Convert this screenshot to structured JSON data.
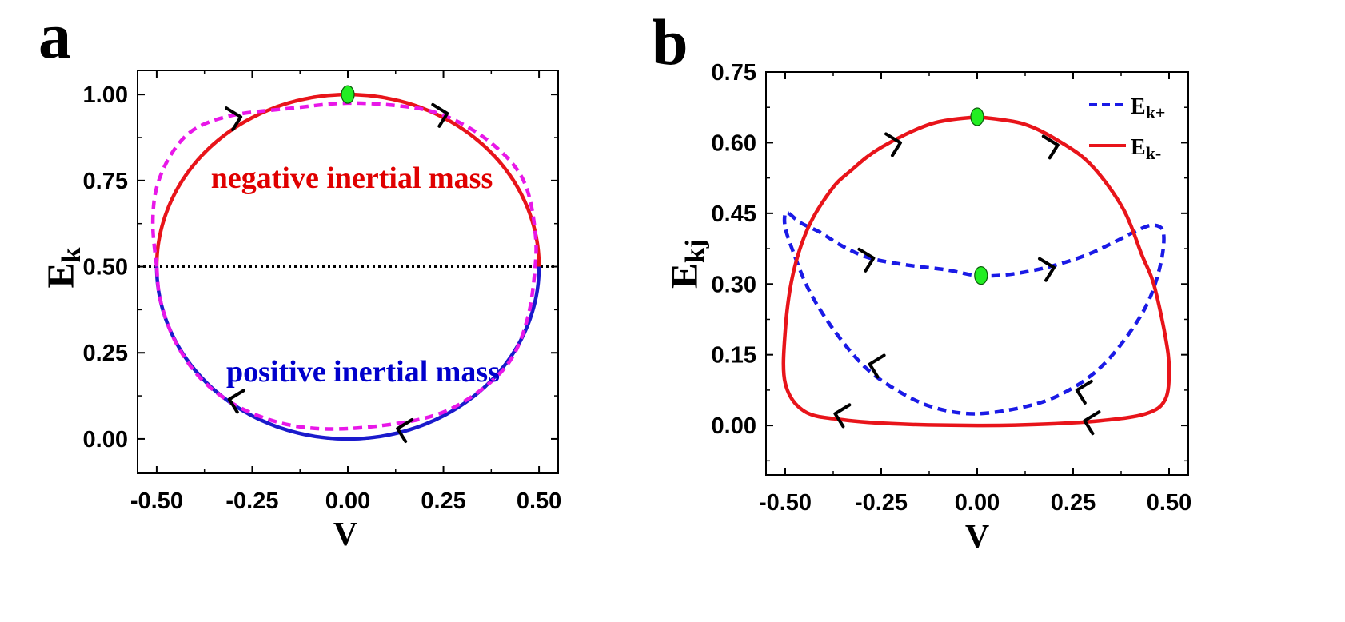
{
  "chart_data": [
    {
      "panel": "a",
      "type": "line",
      "xlabel": "V",
      "ylabel": "E",
      "ylabel_sub": "k",
      "xlim": [
        -0.55,
        0.55
      ],
      "ylim": [
        -0.1,
        1.07
      ],
      "x_ticks": [
        -0.5,
        -0.25,
        0.0,
        0.25,
        0.5
      ],
      "x_tick_labels": [
        "-0.50",
        "-0.25",
        "0.00",
        "0.25",
        "0.50"
      ],
      "y_ticks": [
        0.0,
        0.25,
        0.5,
        0.75,
        1.0
      ],
      "y_tick_labels": [
        "0.00",
        "0.25",
        "0.50",
        "0.75",
        "1.00"
      ],
      "reference_line": {
        "y": 0.5,
        "style": "dotted",
        "color": "#000000"
      },
      "annotations": [
        {
          "text": "negative inertial mass",
          "color": "#e00000",
          "x": -0.1,
          "y": 0.77
        },
        {
          "text": "positive inertial mass",
          "color": "#0000cc",
          "x": 0.06,
          "y": 0.22
        }
      ],
      "series": [
        {
          "name": "upper arc",
          "style": "solid",
          "color": "#e8141a",
          "shape": "semicircle",
          "center": [
            0.0,
            0.5
          ],
          "rx": 0.5,
          "ry": 0.5,
          "half": "upper"
        },
        {
          "name": "lower arc",
          "style": "solid",
          "color": "#1a1acc",
          "shape": "semicircle",
          "center": [
            0.0,
            0.5
          ],
          "rx": 0.5,
          "ry": 0.5,
          "half": "lower"
        },
        {
          "name": "dashed loop",
          "style": "dashed",
          "color": "#e817e8",
          "points": [
            [
              -0.5,
              0.5
            ],
            [
              -0.51,
              0.62
            ],
            [
              -0.5,
              0.73
            ],
            [
              -0.46,
              0.83
            ],
            [
              -0.4,
              0.9
            ],
            [
              -0.3,
              0.94
            ],
            [
              -0.15,
              0.96
            ],
            [
              0.0,
              0.975
            ],
            [
              0.15,
              0.965
            ],
            [
              0.25,
              0.94
            ],
            [
              0.35,
              0.88
            ],
            [
              0.43,
              0.8
            ],
            [
              0.47,
              0.72
            ],
            [
              0.49,
              0.6
            ],
            [
              0.49,
              0.5
            ],
            [
              0.47,
              0.35
            ],
            [
              0.42,
              0.22
            ],
            [
              0.32,
              0.12
            ],
            [
              0.2,
              0.06
            ],
            [
              0.0,
              0.03
            ],
            [
              -0.15,
              0.04
            ],
            [
              -0.28,
              0.09
            ],
            [
              -0.38,
              0.17
            ],
            [
              -0.45,
              0.28
            ],
            [
              -0.49,
              0.4
            ],
            [
              -0.5,
              0.5
            ]
          ]
        }
      ],
      "markers": [
        {
          "x": 0.0,
          "y": 1.0,
          "color": "#22ee22"
        }
      ],
      "arrows": [
        {
          "x": -0.28,
          "y": 0.935,
          "dir": "right"
        },
        {
          "x": 0.26,
          "y": 0.945,
          "dir": "right"
        },
        {
          "x": 0.13,
          "y": 0.03,
          "dir": "left"
        },
        {
          "x": -0.31,
          "y": 0.115,
          "dir": "left"
        }
      ]
    },
    {
      "panel": "b",
      "type": "line",
      "xlabel": "V",
      "ylabel": "E",
      "ylabel_sub": "kj",
      "xlim": [
        -0.55,
        0.55
      ],
      "ylim": [
        -0.105,
        0.75
      ],
      "x_ticks": [
        -0.5,
        -0.25,
        0.0,
        0.25,
        0.5
      ],
      "x_tick_labels": [
        "-0.50",
        "-0.25",
        "0.00",
        "0.25",
        "0.50"
      ],
      "y_ticks": [
        0.0,
        0.15,
        0.3,
        0.45,
        0.6,
        0.75
      ],
      "y_tick_labels": [
        "0.00",
        "0.15",
        "0.30",
        "0.45",
        "0.60",
        "0.75"
      ],
      "legend": {
        "placement": "top-right",
        "entries": [
          {
            "label": "E",
            "sub": "k+",
            "style": "dashed",
            "color": "#1a1ae6"
          },
          {
            "label": "E",
            "sub": "k-",
            "style": "solid",
            "color": "#e8141a"
          }
        ]
      },
      "series": [
        {
          "name": "Ek+",
          "style": "dashed",
          "color": "#1a1ae6",
          "points": [
            [
              -0.49,
              0.45
            ],
            [
              -0.46,
              0.43
            ],
            [
              -0.41,
              0.41
            ],
            [
              -0.35,
              0.38
            ],
            [
              -0.28,
              0.355
            ],
            [
              -0.18,
              0.34
            ],
            [
              -0.08,
              0.33
            ],
            [
              0.0,
              0.318
            ],
            [
              0.08,
              0.32
            ],
            [
              0.18,
              0.335
            ],
            [
              0.28,
              0.36
            ],
            [
              0.36,
              0.39
            ],
            [
              0.42,
              0.415
            ],
            [
              0.46,
              0.425
            ],
            [
              0.485,
              0.41
            ],
            [
              0.48,
              0.35
            ],
            [
              0.45,
              0.27
            ],
            [
              0.4,
              0.2
            ],
            [
              0.33,
              0.13
            ],
            [
              0.25,
              0.08
            ],
            [
              0.15,
              0.045
            ],
            [
              0.0,
              0.025
            ],
            [
              -0.12,
              0.04
            ],
            [
              -0.22,
              0.08
            ],
            [
              -0.3,
              0.13
            ],
            [
              -0.38,
              0.21
            ],
            [
              -0.44,
              0.29
            ],
            [
              -0.48,
              0.37
            ],
            [
              -0.5,
              0.42
            ],
            [
              -0.5,
              0.45
            ],
            [
              -0.49,
              0.45
            ]
          ]
        },
        {
          "name": "Ek-",
          "style": "solid",
          "color": "#e8141a",
          "points": [
            [
              0.0,
              0.655
            ],
            [
              0.12,
              0.64
            ],
            [
              0.22,
              0.6
            ],
            [
              0.3,
              0.55
            ],
            [
              0.38,
              0.46
            ],
            [
              0.43,
              0.36
            ],
            [
              0.46,
              0.3
            ],
            [
              0.49,
              0.19
            ],
            [
              0.5,
              0.12
            ],
            [
              0.49,
              0.055
            ],
            [
              0.44,
              0.025
            ],
            [
              0.32,
              0.01
            ],
            [
              0.15,
              0.002
            ],
            [
              0.0,
              0.0
            ],
            [
              -0.2,
              0.003
            ],
            [
              -0.35,
              0.012
            ],
            [
              -0.45,
              0.03
            ],
            [
              -0.5,
              0.09
            ],
            [
              -0.5,
              0.2
            ],
            [
              -0.48,
              0.32
            ],
            [
              -0.44,
              0.42
            ],
            [
              -0.38,
              0.5
            ],
            [
              -0.33,
              0.54
            ],
            [
              -0.25,
              0.59
            ],
            [
              -0.12,
              0.64
            ],
            [
              0.0,
              0.655
            ]
          ]
        }
      ],
      "markers": [
        {
          "x": 0.0,
          "y": 0.655,
          "color": "#22ee22"
        },
        {
          "x": 0.01,
          "y": 0.318,
          "color": "#22ee22"
        }
      ],
      "arrows": [
        {
          "x": -0.2,
          "y": 0.6,
          "dir": "right"
        },
        {
          "x": 0.21,
          "y": 0.595,
          "dir": "right"
        },
        {
          "x": -0.27,
          "y": 0.355,
          "dir": "right"
        },
        {
          "x": 0.2,
          "y": 0.335,
          "dir": "right"
        },
        {
          "x": -0.28,
          "y": 0.13,
          "dir": "left"
        },
        {
          "x": 0.26,
          "y": 0.075,
          "dir": "left"
        },
        {
          "x": -0.37,
          "y": 0.025,
          "dir": "left"
        },
        {
          "x": 0.28,
          "y": 0.01,
          "dir": "left"
        }
      ]
    }
  ],
  "panel_labels": {
    "a": "a",
    "b": "b"
  },
  "annotation_text": {
    "neg": "negative inertial mass",
    "pos": "positive inertial mass"
  }
}
